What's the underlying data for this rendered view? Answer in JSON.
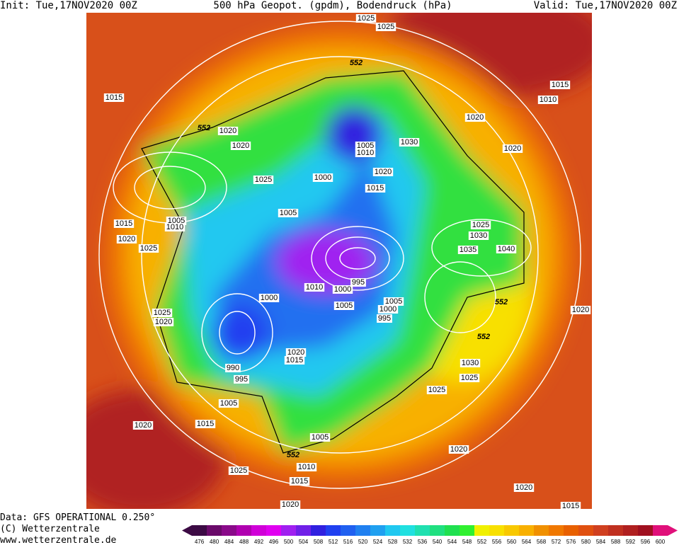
{
  "header": {
    "init": "Init: Tue,17NOV2020 00Z",
    "title": "500 hPa Geopot. (gpdm), Bodendruck (hPa)",
    "valid": "Valid: Tue,17NOV2020 00Z"
  },
  "isobar_labels": [
    "1025",
    "1025",
    "552",
    "1015",
    "1015",
    "1010",
    "1020",
    "552",
    "1020",
    "1020",
    "1005",
    "1010",
    "1030",
    "1020",
    "1025",
    "1000",
    "1020",
    "1015",
    "1005",
    "1005",
    "1010",
    "1015",
    "1020",
    "1025",
    "1025",
    "1030",
    "1035",
    "1040",
    "995",
    "1000",
    "1010",
    "1000",
    "1005",
    "1005",
    "1000",
    "995",
    "1025",
    "1020",
    "552",
    "1020",
    "1020",
    "1015",
    "552",
    "990",
    "995",
    "1030",
    "1025",
    "1025",
    "1005",
    "1015",
    "1020",
    "1005",
    "552",
    "1010",
    "1020",
    "1025",
    "1015",
    "1020",
    "1020",
    "1015"
  ],
  "colorbar": {
    "values": [
      476,
      480,
      484,
      488,
      492,
      496,
      500,
      504,
      508,
      512,
      516,
      520,
      524,
      528,
      532,
      536,
      540,
      544,
      548,
      552,
      556,
      560,
      564,
      568,
      572,
      576,
      580,
      584,
      588,
      592,
      596,
      600
    ],
    "colors": [
      "#3c0a44",
      "#6a0a6a",
      "#8a0a8a",
      "#b000b0",
      "#d000d8",
      "#e000f0",
      "#a020f0",
      "#7020e8",
      "#3020e0",
      "#2040f0",
      "#2060f0",
      "#2080f0",
      "#20a0f0",
      "#20c8f0",
      "#20e0e0",
      "#20e0b0",
      "#20e080",
      "#20e050",
      "#30f030",
      "#f0f000",
      "#f8e000",
      "#f8c800",
      "#f8b000",
      "#f09000",
      "#f07800",
      "#e86000",
      "#e05010",
      "#d04020",
      "#c03020",
      "#b02020",
      "#a01020",
      "#e0107a"
    ]
  },
  "footer": {
    "data": "Data: GFS OPERATIONAL 0.250°",
    "copyright": "(C) Wetterzentrale",
    "url": "www.wetterzentrale.de"
  }
}
